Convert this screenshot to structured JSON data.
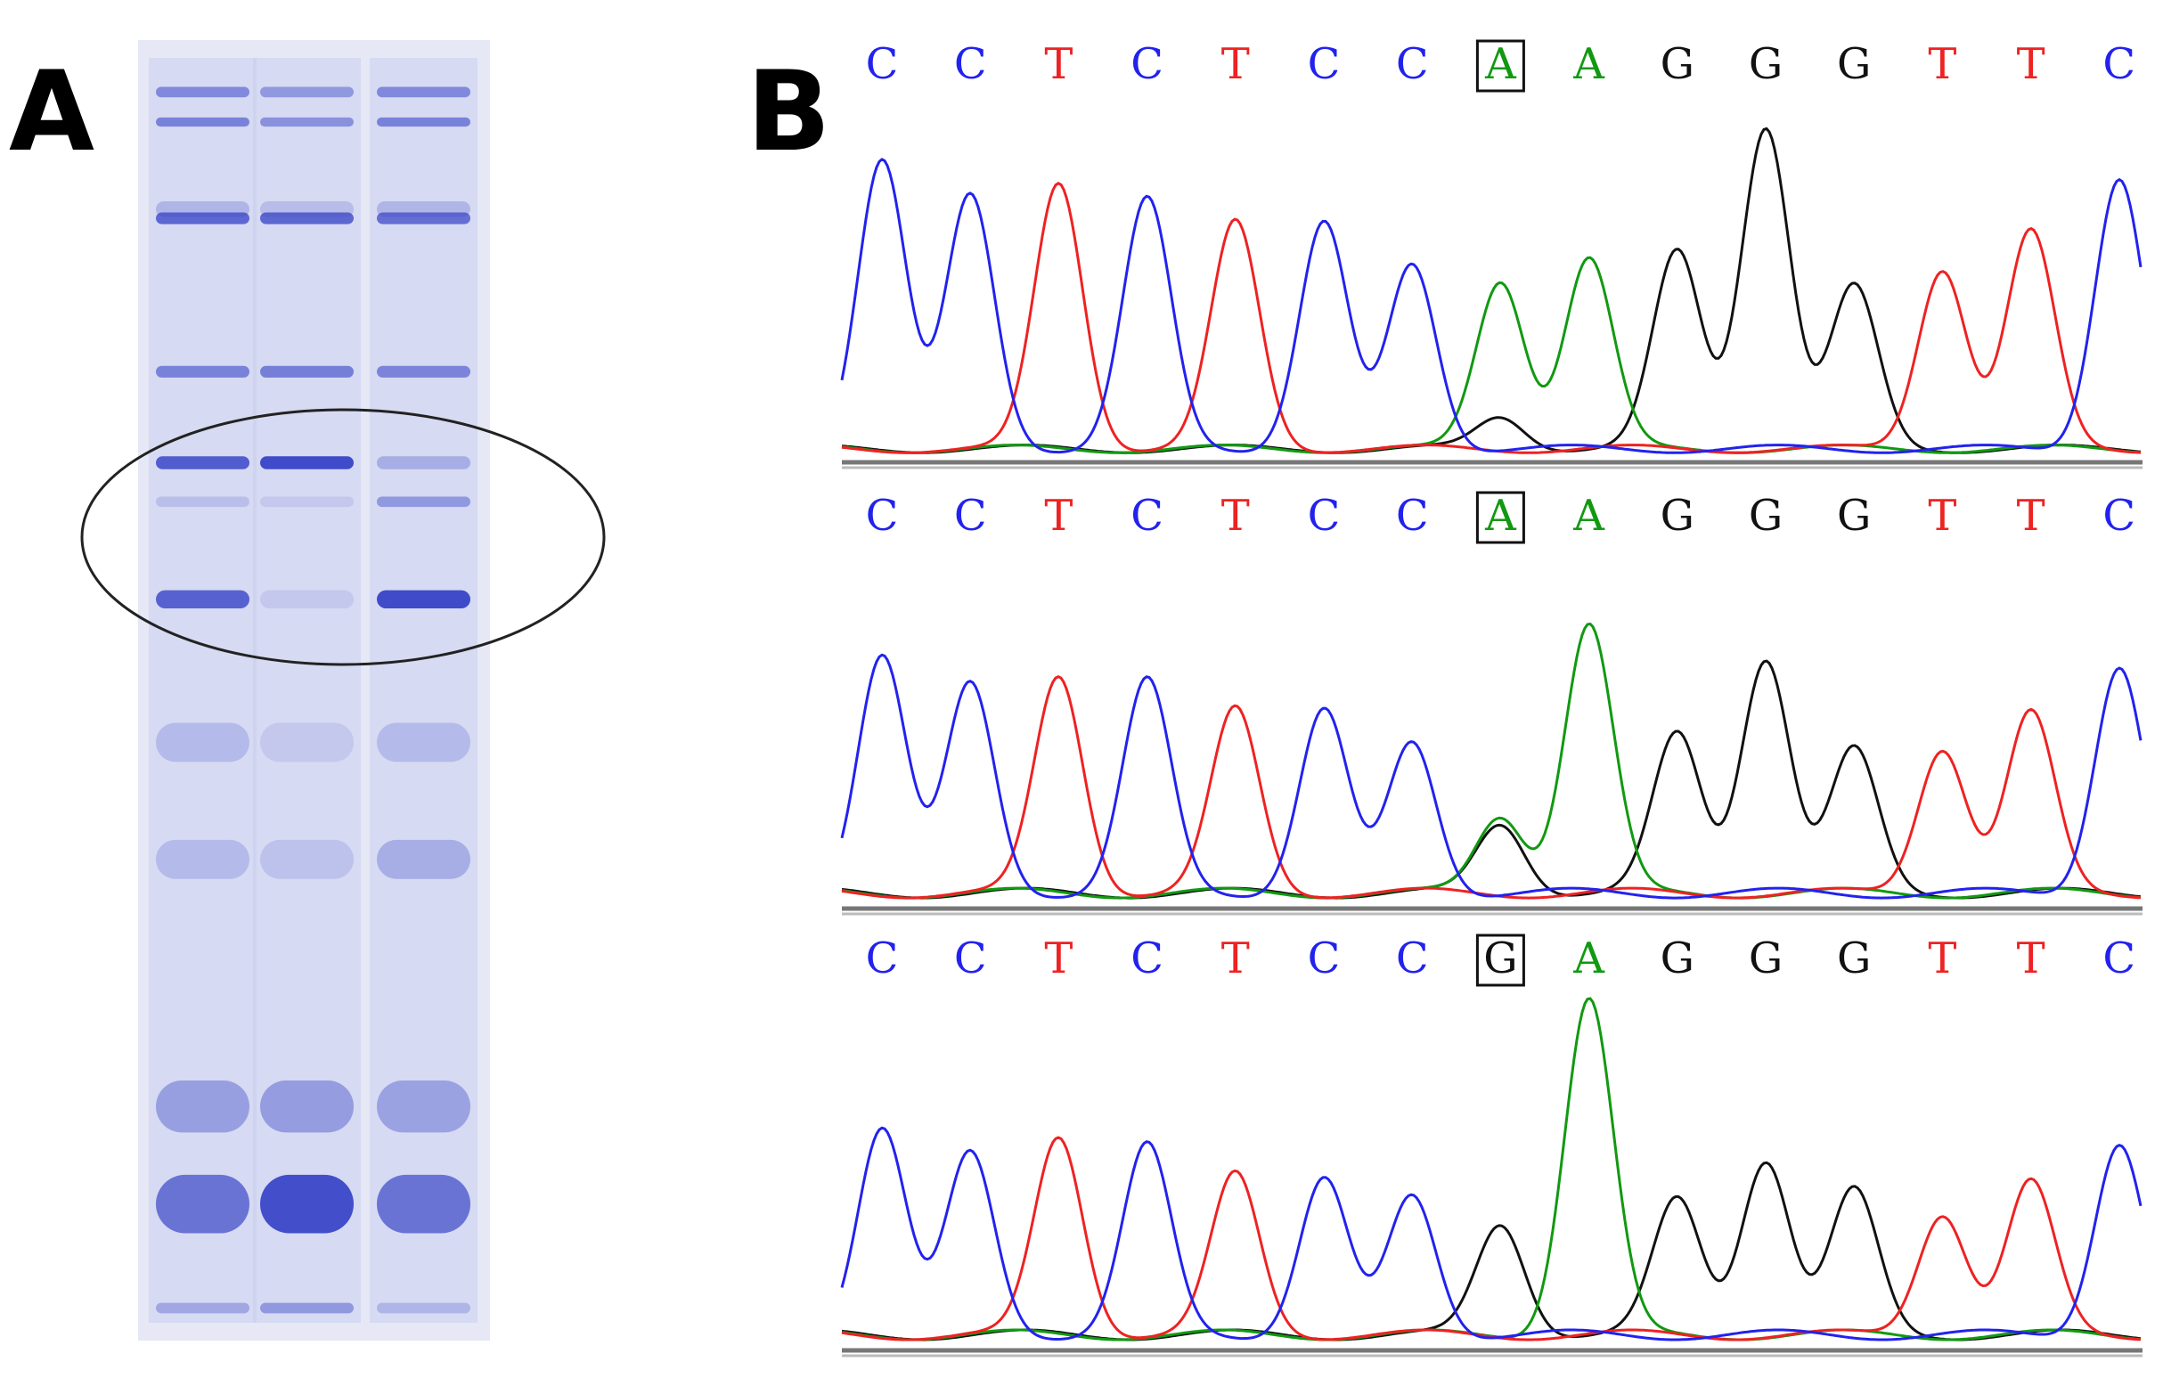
{
  "panel_a": {
    "label": "A",
    "lane_count": 3,
    "stain_color": "#3b47c8",
    "bands": [
      {
        "pos": 0.04,
        "intensity": [
          0.55,
          0.45,
          0.55
        ],
        "thickness": 0.008
      },
      {
        "pos": 0.063,
        "intensity": [
          0.6,
          0.5,
          0.6
        ],
        "thickness": 0.007
      },
      {
        "pos": 0.13,
        "intensity": [
          0.25,
          0.2,
          0.25
        ],
        "thickness": 0.012
      },
      {
        "pos": 0.137,
        "intensity": [
          0.78,
          0.78,
          0.74
        ],
        "thickness": 0.009
      },
      {
        "pos": 0.255,
        "intensity": [
          0.6,
          0.62,
          0.58
        ],
        "thickness": 0.009
      },
      {
        "pos": 0.325,
        "intensity": [
          0.86,
          0.98,
          0.3
        ],
        "thickness": 0.01
      },
      {
        "pos": 0.355,
        "intensity": [
          0.18,
          0.12,
          0.45
        ],
        "thickness": 0.008
      },
      {
        "pos": 0.43,
        "intensity": [
          0.82,
          0.12,
          0.98
        ],
        "thickness": 0.014
      },
      {
        "pos": 0.54,
        "intensity": [
          0.22,
          0.12,
          0.22
        ],
        "thickness": 0.03
      },
      {
        "pos": 0.63,
        "intensity": [
          0.22,
          0.16,
          0.3
        ],
        "thickness": 0.03
      },
      {
        "pos": 0.82,
        "intensity": [
          0.4,
          0.42,
          0.38
        ],
        "thickness": 0.04
      },
      {
        "pos": 0.895,
        "intensity": [
          0.7,
          0.95,
          0.7
        ],
        "thickness": 0.045
      },
      {
        "pos": 0.975,
        "intensity": [
          0.35,
          0.45,
          0.25
        ],
        "thickness": 0.008
      }
    ]
  },
  "panel_b": {
    "label": "B",
    "colors": {
      "A": "#119911",
      "C": "#2222ee",
      "G": "#111111",
      "T": "#ee2222"
    },
    "traces": [
      {
        "bases": [
          "C",
          "C",
          "T",
          "C",
          "T",
          "C",
          "C",
          "A",
          "A",
          "G",
          "G",
          "G",
          "T",
          "T",
          "C"
        ],
        "boxed_index": 7,
        "peak_heights": [
          0.9,
          0.78,
          0.82,
          0.77,
          0.7,
          0.7,
          0.57,
          0.52,
          0.59,
          0.61,
          1.0,
          0.5,
          0.56,
          0.67,
          0.84
        ],
        "secondary_peaks": [
          {
            "index": 7,
            "base": "G",
            "height": 0.1
          }
        ]
      },
      {
        "bases": [
          "C",
          "C",
          "T",
          "C",
          "T",
          "C",
          "C",
          "A",
          "A",
          "G",
          "G",
          "G",
          "T",
          "T",
          "C"
        ],
        "boxed_index": 7,
        "peak_heights": [
          0.59,
          0.51,
          0.53,
          0.52,
          0.45,
          0.45,
          0.37,
          0.19,
          0.66,
          0.39,
          0.58,
          0.35,
          0.36,
          0.44,
          0.56
        ],
        "secondary_peaks": [
          {
            "index": 7,
            "base": "G",
            "height": 0.17
          }
        ]
      },
      {
        "bases": [
          "C",
          "C",
          "T",
          "C",
          "T",
          "C",
          "C",
          "G",
          "A",
          "G",
          "G",
          "G",
          "T",
          "T",
          "C"
        ],
        "boxed_index": 7,
        "peak_heights": [
          0.51,
          0.44,
          0.48,
          0.46,
          0.39,
          0.38,
          0.34,
          0.27,
          0.82,
          0.33,
          0.43,
          0.35,
          0.3,
          0.37,
          0.47
        ],
        "secondary_peaks": []
      }
    ]
  }
}
